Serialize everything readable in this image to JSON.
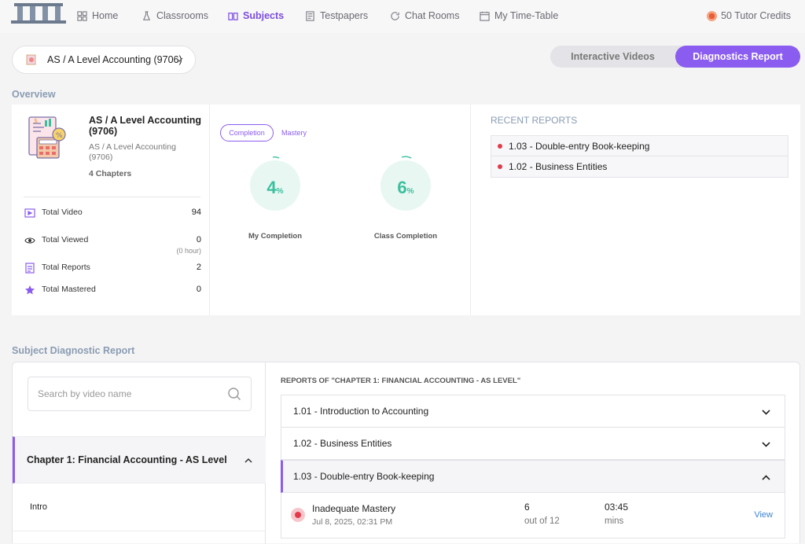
{
  "nav": {
    "items": [
      {
        "label": "Home",
        "icon": "grid-icon"
      },
      {
        "label": "Classrooms",
        "icon": "flask-icon"
      },
      {
        "label": "Subjects",
        "icon": "book-icon",
        "active": true
      },
      {
        "label": "Testpapers",
        "icon": "document-icon"
      },
      {
        "label": "Chat Rooms",
        "icon": "chat-icon"
      },
      {
        "label": "My Time-Table",
        "icon": "calendar-icon"
      }
    ],
    "credits": "50 Tutor Credits"
  },
  "subject_select": {
    "value": "AS / A Level Accounting (9706)"
  },
  "view_toggle": {
    "options": [
      "Interactive Videos",
      "Diagnostics Report"
    ],
    "active": "Diagnostics Report"
  },
  "overview": {
    "title": "Overview",
    "subject_name": "AS / A Level Accounting (9706)",
    "subject_subtitle": "AS / A Level Accounting (9706)",
    "chapters": "4 Chapters",
    "stats": [
      {
        "label": "Total Video",
        "value": "94"
      },
      {
        "label": "Total Viewed",
        "value": "0",
        "sub": "(0 hour)"
      },
      {
        "label": "Total Reports",
        "value": "2"
      },
      {
        "label": "Total Mastered",
        "value": "0"
      }
    ],
    "tabs": [
      "Completion",
      "Mastery"
    ],
    "my_completion": {
      "value": "4",
      "unit": "%",
      "label": "My Completion"
    },
    "class_completion": {
      "value": "6",
      "unit": "%",
      "label": "Class Completion"
    },
    "recent_reports_title": "RECENT REPORTS",
    "recent_reports": [
      "1.03 - Double-entry Book-keeping",
      "1.02 - Business Entities"
    ]
  },
  "diagnostic": {
    "title": "Subject Diagnostic Report",
    "search_placeholder": "Search by video name",
    "chapter": "Chapter 1: Financial Accounting - AS Level",
    "intro": "Intro",
    "reports_heading": "REPORTS OF \"CHAPTER 1: FINANCIAL ACCOUNTING - AS LEVEL\"",
    "sections": [
      {
        "label": "1.01 - Introduction to Accounting",
        "open": false
      },
      {
        "label": "1.02 - Business Entities",
        "open": false
      },
      {
        "label": "1.03 - Double-entry Book-keeping",
        "open": true
      }
    ],
    "report": {
      "status": "Inadequate Mastery",
      "date": "Jul 8, 2025, 02:31 PM",
      "score": "6",
      "out_of": "out of 12",
      "time": "03:45",
      "time_unit": "mins",
      "action": "View"
    }
  },
  "colors": {
    "accent": "#8b5cf0",
    "completion": "#3bbf9e",
    "danger": "#e23a4a",
    "link": "#3b82d6"
  }
}
